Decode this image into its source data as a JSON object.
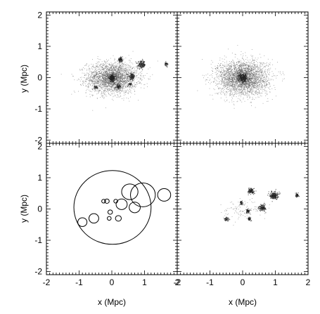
{
  "chart_data": {
    "type": "scatter",
    "layout": "2x2 grid",
    "axes": {
      "xlabel": "x (Mpc)",
      "ylabel": "y (Mpc)",
      "xlim": [
        -2,
        2
      ],
      "ylim": [
        -2.1,
        2.1
      ],
      "xticks": [
        "-2",
        "-1",
        "0",
        "1",
        "2"
      ],
      "yticks": [
        "-2",
        "-1",
        "0",
        "1",
        "2"
      ]
    },
    "panels": [
      {
        "id": "top-left",
        "type": "scatter",
        "description_source": "particle distribution: halo plus subhalos",
        "halo": {
          "x": 0.0,
          "y": 0.0,
          "spread_x": 0.7,
          "spread_y": 0.45,
          "count": 2600
        },
        "clumps": [
          {
            "x": 0.0,
            "y": 0.0,
            "r": 0.12,
            "n": 220
          },
          {
            "x": 0.25,
            "y": 0.58,
            "r": 0.07,
            "n": 90
          },
          {
            "x": 0.9,
            "y": 0.42,
            "r": 0.12,
            "n": 160
          },
          {
            "x": 0.6,
            "y": 0.05,
            "r": 0.1,
            "n": 120
          },
          {
            "x": 0.2,
            "y": -0.28,
            "r": 0.07,
            "n": 70
          },
          {
            "x": -0.5,
            "y": -0.3,
            "r": 0.05,
            "n": 40
          },
          {
            "x": 1.65,
            "y": 0.45,
            "r": 0.06,
            "n": 40
          },
          {
            "x": 0.55,
            "y": -0.2,
            "r": 0.05,
            "n": 40
          }
        ]
      },
      {
        "id": "top-right",
        "type": "scatter",
        "description_source": "smooth halo particles",
        "halo": {
          "x": 0.0,
          "y": 0.0,
          "spread_x": 0.7,
          "spread_y": 0.5,
          "count": 3000
        },
        "clumps": [
          {
            "x": 0.0,
            "y": 0.0,
            "r": 0.14,
            "n": 260
          }
        ]
      },
      {
        "id": "bottom-left",
        "type": "circles",
        "circles": [
          {
            "x": 0.02,
            "y": 0.05,
            "r": 1.18
          },
          {
            "x": 0.55,
            "y": 0.55,
            "r": 0.25
          },
          {
            "x": 0.95,
            "y": 0.45,
            "r": 0.38
          },
          {
            "x": 1.6,
            "y": 0.45,
            "r": 0.2
          },
          {
            "x": 0.3,
            "y": 0.15,
            "r": 0.17
          },
          {
            "x": 0.7,
            "y": 0.05,
            "r": 0.17
          },
          {
            "x": -0.55,
            "y": -0.3,
            "r": 0.15
          },
          {
            "x": -0.9,
            "y": -0.42,
            "r": 0.14
          },
          {
            "x": 0.2,
            "y": -0.3,
            "r": 0.09
          },
          {
            "x": -0.05,
            "y": -0.1,
            "r": 0.07
          },
          {
            "x": -0.08,
            "y": -0.3,
            "r": 0.06
          },
          {
            "x": -0.15,
            "y": 0.25,
            "r": 0.07
          },
          {
            "x": -0.25,
            "y": 0.25,
            "r": 0.06
          },
          {
            "x": 0.12,
            "y": 0.25,
            "r": 0.06
          }
        ]
      },
      {
        "id": "bottom-right",
        "type": "scatter",
        "description_source": "subhalo particles only",
        "halo": {
          "x": 0.0,
          "y": 0.0,
          "spread_x": 0.6,
          "spread_y": 0.3,
          "count": 120
        },
        "clumps": [
          {
            "x": 0.25,
            "y": 0.58,
            "r": 0.09,
            "n": 130
          },
          {
            "x": 0.95,
            "y": 0.45,
            "r": 0.12,
            "n": 220
          },
          {
            "x": 1.65,
            "y": 0.45,
            "r": 0.06,
            "n": 50
          },
          {
            "x": 0.6,
            "y": 0.05,
            "r": 0.1,
            "n": 140
          },
          {
            "x": 0.15,
            "y": -0.05,
            "r": 0.07,
            "n": 70
          },
          {
            "x": 0.2,
            "y": -0.3,
            "r": 0.05,
            "n": 50
          },
          {
            "x": -0.5,
            "y": -0.32,
            "r": 0.07,
            "n": 50
          },
          {
            "x": -0.05,
            "y": 0.2,
            "r": 0.06,
            "n": 40
          }
        ]
      }
    ]
  }
}
